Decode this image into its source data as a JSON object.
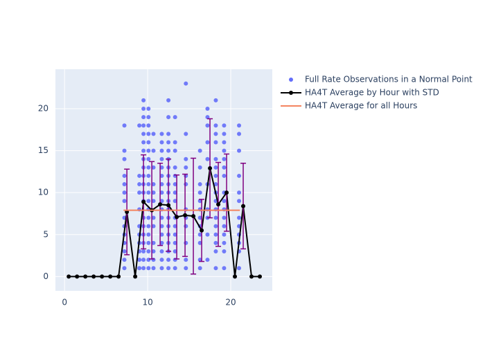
{
  "chart_data": {
    "type": "scatter",
    "xlim": [
      -1.1,
      25
    ],
    "ylim": [
      -1.7,
      24.7
    ],
    "xticks": [
      0,
      10,
      20
    ],
    "yticks": [
      0,
      5,
      10,
      15,
      20
    ],
    "grid": true,
    "legend": "right",
    "series": [
      {
        "name": "Full Rate Observations in a Normal Point",
        "mode": "markers",
        "color": "#636efa",
        "x": [
          7.2,
          7.2,
          7.2,
          7.2,
          7.2,
          7.2,
          7.2,
          7.2,
          7.2,
          7.2,
          7.2,
          7.2,
          7.2,
          7.2,
          9.0,
          9.0,
          9.0,
          9.0,
          9.0,
          9.0,
          9.0,
          9.0,
          9.0,
          9.0,
          9.0,
          9.5,
          9.5,
          9.5,
          9.5,
          9.5,
          9.5,
          9.5,
          9.5,
          9.5,
          9.5,
          9.5,
          9.5,
          9.5,
          9.5,
          9.5,
          9.5,
          9.5,
          9.5,
          9.5,
          9.5,
          10.1,
          10.1,
          10.1,
          10.1,
          10.1,
          10.1,
          10.1,
          10.1,
          10.1,
          10.1,
          10.1,
          10.1,
          10.1,
          10.1,
          10.1,
          10.1,
          10.1,
          10.1,
          10.1,
          10.1,
          10.7,
          10.7,
          10.7,
          10.7,
          10.7,
          10.7,
          10.7,
          10.7,
          10.7,
          10.7,
          10.7,
          10.7,
          11.7,
          11.7,
          11.7,
          11.7,
          11.7,
          11.7,
          11.7,
          11.7,
          11.7,
          11.7,
          11.7,
          11.7,
          11.7,
          11.7,
          11.7,
          11.7,
          11.7,
          12.5,
          12.5,
          12.5,
          12.5,
          12.5,
          12.5,
          12.5,
          12.5,
          12.5,
          12.5,
          12.5,
          12.5,
          12.5,
          12.5,
          12.5,
          12.5,
          12.5,
          12.5,
          12.5,
          13.3,
          13.3,
          13.3,
          13.3,
          13.3,
          13.3,
          13.3,
          13.3,
          13.3,
          13.3,
          13.3,
          13.3,
          13.3,
          13.3,
          13.3,
          14.6,
          14.6,
          14.6,
          14.6,
          14.6,
          14.6,
          14.6,
          14.6,
          14.6,
          14.6,
          14.6,
          14.6,
          16.3,
          16.3,
          16.3,
          16.3,
          16.3,
          16.3,
          16.3,
          16.3,
          16.3,
          16.3,
          16.3,
          16.3,
          17.2,
          17.2,
          17.2,
          17.2,
          17.2,
          17.2,
          17.2,
          17.2,
          17.2,
          17.2,
          18.2,
          18.2,
          18.2,
          18.2,
          18.2,
          18.2,
          18.2,
          18.2,
          18.2,
          18.2,
          18.2,
          18.2,
          18.2,
          18.2,
          18.2,
          18.2,
          18.2,
          19.2,
          19.2,
          19.2,
          19.2,
          19.2,
          19.2,
          19.2,
          19.2,
          19.2,
          19.2,
          19.2,
          19.2,
          19.2,
          19.2,
          19.2,
          19.2,
          21.0,
          21.0,
          21.0,
          21.0,
          21.0,
          21.0,
          21.0,
          21.0,
          21.0,
          21.0,
          21.0,
          21.0
        ],
        "values": [
          18,
          15,
          14,
          12,
          11,
          10,
          9,
          7,
          6,
          5,
          4,
          3,
          2,
          1,
          18,
          12,
          11,
          10,
          8,
          6,
          5,
          4,
          3,
          2,
          1,
          21,
          20,
          19,
          18,
          17,
          16,
          15,
          14,
          13,
          12,
          11,
          10,
          9,
          7,
          6,
          5,
          4,
          3,
          2,
          1,
          20,
          19,
          18,
          17,
          16,
          15,
          14,
          13,
          12,
          11,
          10,
          9,
          8,
          7,
          6,
          5,
          4,
          3,
          2,
          1,
          17,
          15,
          13,
          11,
          10,
          9,
          7,
          6,
          4,
          3,
          2,
          1,
          17,
          16,
          15,
          14,
          13,
          12,
          11,
          10,
          9,
          8,
          7,
          6,
          5,
          4,
          3,
          2,
          1,
          21,
          19,
          17,
          16,
          15,
          14,
          13,
          12,
          11,
          10,
          9,
          8,
          7,
          6,
          5,
          4,
          3,
          2,
          1,
          19,
          16,
          15,
          13,
          12,
          11,
          10,
          9,
          7,
          6,
          5,
          4,
          3,
          2,
          1,
          23,
          17,
          14,
          13,
          12,
          11,
          8,
          7,
          6,
          4,
          2,
          1,
          15,
          13,
          11,
          10,
          9,
          8,
          7,
          6,
          5,
          4,
          2,
          1,
          20,
          19,
          18,
          16,
          14,
          11,
          8,
          7,
          5,
          2,
          21,
          18,
          17,
          16,
          14,
          13,
          12,
          11,
          10,
          9,
          8,
          7,
          6,
          5,
          4,
          3,
          1,
          18,
          17,
          16,
          15,
          14,
          13,
          12,
          10,
          9,
          8,
          7,
          6,
          5,
          4,
          3,
          1,
          18,
          17,
          15,
          12,
          10,
          9,
          7,
          6,
          5,
          4,
          3,
          1
        ]
      },
      {
        "name": "HA4T Average by Hour with STD",
        "mode": "lines+markers",
        "color": "#000000",
        "error_color": "#800080",
        "x": [
          0.5,
          1.5,
          2.5,
          3.5,
          4.5,
          5.5,
          6.5,
          7.5,
          8.5,
          9.5,
          10.5,
          11.5,
          12.5,
          13.5,
          14.5,
          15.5,
          16.5,
          17.5,
          18.5,
          19.5,
          20.5,
          21.5,
          22.5,
          23.5
        ],
        "values": [
          0,
          0,
          0,
          0,
          0,
          0,
          0,
          7.7,
          0,
          8.9,
          7.9,
          8.6,
          8.5,
          7.1,
          7.3,
          7.2,
          5.5,
          12.9,
          8.6,
          10.0,
          0,
          8.4,
          0,
          0
        ],
        "errors": [
          null,
          null,
          null,
          null,
          null,
          null,
          null,
          5.1,
          null,
          5.6,
          5.8,
          4.9,
          5.5,
          5.0,
          4.9,
          6.9,
          3.7,
          5.9,
          5.0,
          4.6,
          null,
          5.1,
          null,
          null
        ]
      },
      {
        "name": "HA4T Average for all Hours",
        "mode": "lines",
        "color": "#f4845f",
        "x": [
          7.1,
          21.1
        ],
        "values": [
          7.9,
          7.9
        ]
      }
    ]
  }
}
